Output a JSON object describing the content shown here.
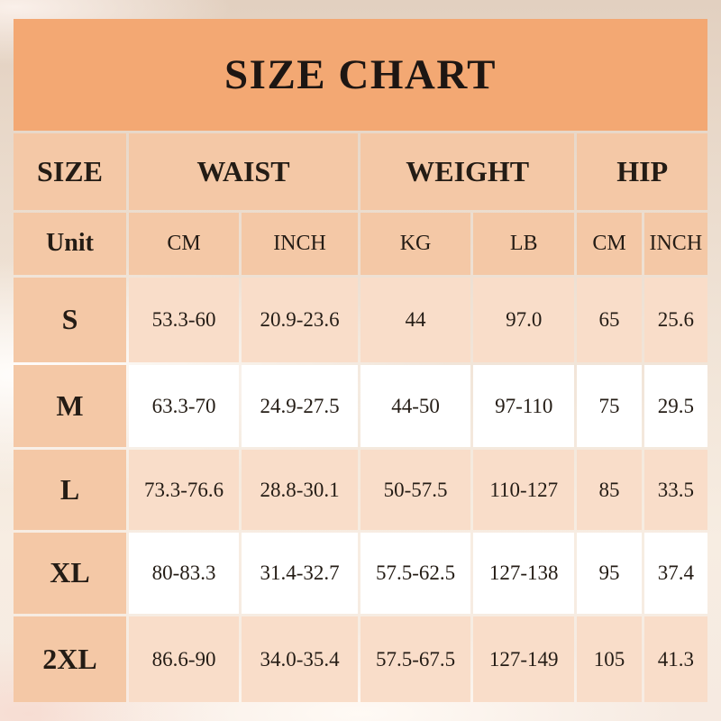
{
  "title": "SIZE CHART",
  "table": {
    "column_groups": [
      {
        "label": "SIZE",
        "span": 1
      },
      {
        "label": "WAIST",
        "span": 2
      },
      {
        "label": "WEIGHT",
        "span": 2
      },
      {
        "label": "HIP",
        "span": 2
      }
    ],
    "unit_row": {
      "label": "Unit",
      "units": [
        "CM",
        "INCH",
        "KG",
        "LB",
        "CM",
        "INCH"
      ]
    },
    "rows": [
      {
        "size": "S",
        "highlight": true,
        "values": [
          "53.3-60",
          "20.9-23.6",
          "44",
          "97.0",
          "65",
          "25.6"
        ]
      },
      {
        "size": "M",
        "highlight": false,
        "values": [
          "63.3-70",
          "24.9-27.5",
          "44-50",
          "97-110",
          "75",
          "29.5"
        ]
      },
      {
        "size": "L",
        "highlight": true,
        "values": [
          "73.3-76.6",
          "28.8-30.1",
          "50-57.5",
          "110-127",
          "85",
          "33.5"
        ]
      },
      {
        "size": "XL",
        "highlight": false,
        "values": [
          "80-83.3",
          "31.4-32.7",
          "57.5-62.5",
          "127-138",
          "95",
          "37.4"
        ]
      },
      {
        "size": "2XL",
        "highlight": true,
        "values": [
          "86.6-90",
          "34.0-35.4",
          "57.5-67.5",
          "127-149",
          "105",
          "41.3"
        ]
      }
    ]
  },
  "colors": {
    "banner_orange": "#f3a873",
    "header_peach": "#f4c8a6",
    "row_light_peach": "#f9ddc9",
    "row_white": "#ffffff",
    "text_dark": "#241c15"
  },
  "chart_data": {
    "type": "table",
    "title": "SIZE CHART",
    "column_groups": [
      "SIZE",
      "WAIST",
      "WEIGHT",
      "HIP"
    ],
    "columns": [
      "SIZE",
      "WAIST CM",
      "WAIST INCH",
      "WEIGHT KG",
      "WEIGHT LB",
      "HIP CM",
      "HIP INCH"
    ],
    "rows": [
      [
        "S",
        "53.3-60",
        "20.9-23.6",
        "44",
        "97.0",
        "65",
        "25.6"
      ],
      [
        "M",
        "63.3-70",
        "24.9-27.5",
        "44-50",
        "97-110",
        "75",
        "29.5"
      ],
      [
        "L",
        "73.3-76.6",
        "28.8-30.1",
        "50-57.5",
        "110-127",
        "85",
        "33.5"
      ],
      [
        "XL",
        "80-83.3",
        "31.4-32.7",
        "57.5-62.5",
        "127-138",
        "95",
        "37.4"
      ],
      [
        "2XL",
        "86.6-90",
        "34.0-35.4",
        "57.5-67.5",
        "127-149",
        "105",
        "41.3"
      ]
    ]
  }
}
